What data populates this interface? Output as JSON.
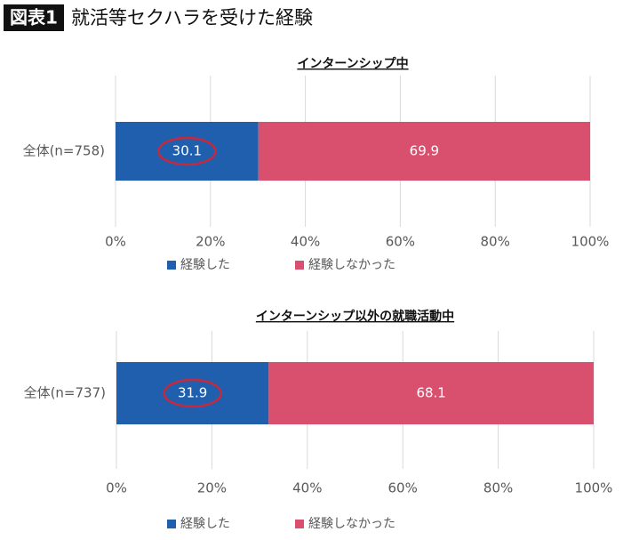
{
  "figure_label": "図表1",
  "title": "就活等セクハラを受けた経験",
  "chart_data": [
    {
      "type": "stacked_bar_horizontal",
      "title": "インターンシップ中",
      "categories": [
        "全体(n=758)"
      ],
      "series": [
        {
          "name": "経験した",
          "color": "#1f5fad",
          "values": [
            30.1
          ]
        },
        {
          "name": "経験しなかった",
          "color": "#d9506e",
          "values": [
            69.9
          ]
        }
      ],
      "xlim": [
        0,
        100
      ],
      "xticks": [
        {
          "value": 0,
          "label": "0%"
        },
        {
          "value": 20,
          "label": "20%"
        },
        {
          "value": 40,
          "label": "40%"
        },
        {
          "value": 60,
          "label": "60%"
        },
        {
          "value": 80,
          "label": "80%"
        },
        {
          "value": 100,
          "label": "100%"
        }
      ],
      "grid": true,
      "legend": "bottom"
    },
    {
      "type": "stacked_bar_horizontal",
      "title": "インターンシップ以外の就職活動中",
      "categories": [
        "全体(n=737)"
      ],
      "series": [
        {
          "name": "経験した",
          "color": "#1f5fad",
          "values": [
            31.9
          ]
        },
        {
          "name": "経験しなかった",
          "color": "#d9506e",
          "values": [
            68.1
          ]
        }
      ],
      "xlim": [
        0,
        100
      ],
      "xticks": [
        {
          "value": 0,
          "label": "0%"
        },
        {
          "value": 20,
          "label": "20%"
        },
        {
          "value": 40,
          "label": "40%"
        },
        {
          "value": 60,
          "label": "60%"
        },
        {
          "value": 80,
          "label": "80%"
        },
        {
          "value": 100,
          "label": "100%"
        }
      ],
      "grid": true,
      "legend": "bottom"
    }
  ]
}
